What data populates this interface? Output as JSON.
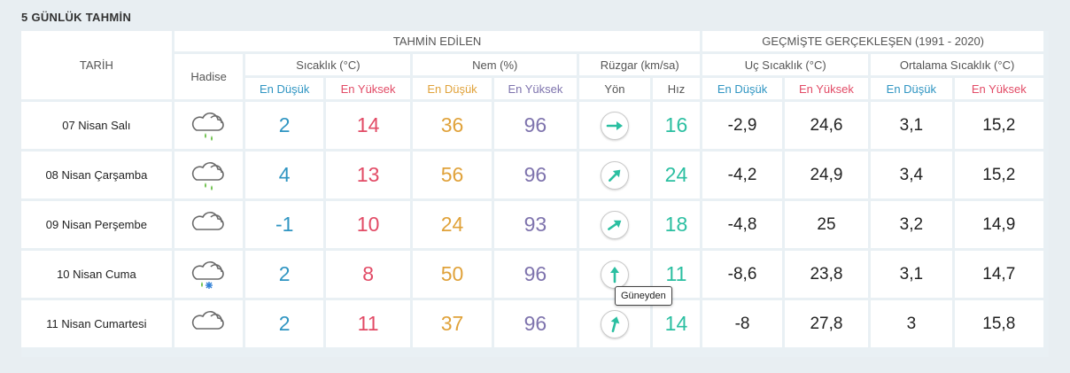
{
  "title": "5 GÜNLÜK TAHMİN",
  "headers": {
    "date": "TARİH",
    "forecast": "TAHMİN EDİLEN",
    "history": "GEÇMİŞTE GERÇEKLEŞEN (1991 - 2020)",
    "event": "Hadise",
    "temp": "Sıcaklık (°C)",
    "humidity": "Nem (%)",
    "wind": "Rüzgar (km/sa)",
    "extreme_temp": "Uç Sıcaklık (°C)",
    "avg_temp": "Ortalama Sıcaklık (°C)",
    "low": "En Düşük",
    "high": "En Yüksek",
    "direction": "Yön",
    "speed": "Hız"
  },
  "rows": [
    {
      "date": "07 Nisan Salı",
      "icon": "rain-cloud-icon",
      "temp_low": "2",
      "temp_high": "14",
      "hum_low": "36",
      "hum_high": "96",
      "wind_deg": 90,
      "wind_speed": "16",
      "ext_low": "-2,9",
      "ext_high": "24,6",
      "avg_low": "3,1",
      "avg_high": "15,2"
    },
    {
      "date": "08 Nisan Çarşamba",
      "icon": "rain-cloud-icon",
      "temp_low": "4",
      "temp_high": "13",
      "hum_low": "56",
      "hum_high": "96",
      "wind_deg": 45,
      "wind_speed": "24",
      "ext_low": "-4,2",
      "ext_high": "24,9",
      "avg_low": "3,4",
      "avg_high": "15,2"
    },
    {
      "date": "09 Nisan Perşembe",
      "icon": "cloud-icon",
      "temp_low": "-1",
      "temp_high": "10",
      "hum_low": "24",
      "hum_high": "93",
      "wind_deg": 55,
      "wind_speed": "18",
      "ext_low": "-4,8",
      "ext_high": "25",
      "avg_low": "3,2",
      "avg_high": "14,9"
    },
    {
      "date": "10 Nisan Cuma",
      "icon": "sleet-cloud-icon",
      "temp_low": "2",
      "temp_high": "8",
      "hum_low": "50",
      "hum_high": "96",
      "wind_deg": 0,
      "wind_speed": "11",
      "ext_low": "-8,6",
      "ext_high": "23,8",
      "avg_low": "3,1",
      "avg_high": "14,7"
    },
    {
      "date": "11 Nisan Cumartesi",
      "icon": "cloud-icon",
      "temp_low": "2",
      "temp_high": "11",
      "hum_low": "37",
      "hum_high": "96",
      "wind_deg": 15,
      "wind_speed": "14",
      "ext_low": "-8",
      "ext_high": "27,8",
      "avg_low": "3",
      "avg_high": "15,8"
    }
  ],
  "tooltip": "Güneyden",
  "colors": {
    "low_blue": "#2f95c2",
    "high_red": "#e24b66",
    "low_orange": "#e0a23a",
    "high_purple": "#7e73ad",
    "wind": "#2bbfa1"
  }
}
